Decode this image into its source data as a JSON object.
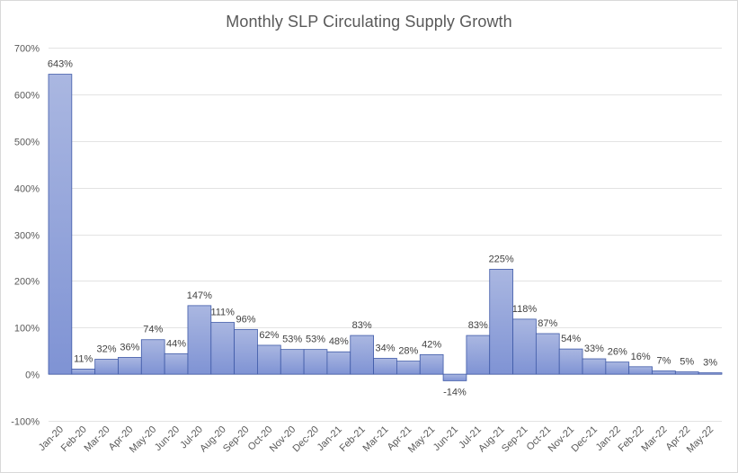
{
  "chart_data": {
    "type": "bar",
    "title": "Monthly SLP Circulating Supply Growth",
    "xlabel": "",
    "ylabel": "",
    "ylim": [
      -100,
      700
    ],
    "yticks": [
      -100,
      0,
      100,
      200,
      300,
      400,
      500,
      600,
      700
    ],
    "ytick_labels": [
      "-100%",
      "0%",
      "100%",
      "200%",
      "300%",
      "400%",
      "500%",
      "600%",
      "700%"
    ],
    "grid": true,
    "legend": "none",
    "categories": [
      "Jan-20",
      "Feb-20",
      "Mar-20",
      "Apr-20",
      "May-20",
      "Jun-20",
      "Jul-20",
      "Aug-20",
      "Sep-20",
      "Oct-20",
      "Nov-20",
      "Dec-20",
      "Jan-21",
      "Feb-21",
      "Mar-21",
      "Apr-21",
      "May-21",
      "Jun-21",
      "Jul-21",
      "Aug-21",
      "Sep-21",
      "Oct-21",
      "Nov-21",
      "Dec-21",
      "Jan-22",
      "Feb-22",
      "Mar-22",
      "Apr-22",
      "May-22"
    ],
    "values": [
      643,
      11,
      32,
      36,
      74,
      44,
      147,
      111,
      96,
      62,
      53,
      53,
      48,
      83,
      34,
      28,
      42,
      -14,
      83,
      225,
      118,
      87,
      54,
      33,
      26,
      16,
      7,
      5,
      3
    ],
    "data_labels": [
      "643%",
      "11%",
      "32%",
      "36%",
      "74%",
      "44%",
      "147%",
      "111%",
      "96%",
      "62%",
      "53%",
      "53%",
      "48%",
      "83%",
      "34%",
      "28%",
      "42%",
      "-14%",
      "83%",
      "225%",
      "118%",
      "87%",
      "54%",
      "33%",
      "26%",
      "16%",
      "7%",
      "5%",
      "3%"
    ],
    "colors": {
      "bar_top": "#aab7e1",
      "bar_bottom": "#7f93d4",
      "bar_border": "#3f5aa8",
      "grid": "#e3e3e3",
      "text": "#595959",
      "label": "#404040"
    }
  }
}
